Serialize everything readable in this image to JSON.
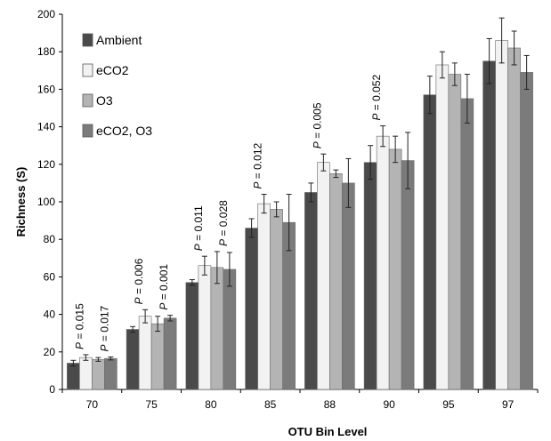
{
  "chart_data": {
    "type": "bar",
    "xlabel": "OTU Bin Level",
    "ylabel": "Richness (S)",
    "ylim": [
      0,
      200
    ],
    "yticks": [
      "0",
      "20",
      "40",
      "60",
      "80",
      "100",
      "120",
      "140",
      "160",
      "180",
      "200"
    ],
    "grid": false,
    "legend_position": "top-left",
    "categories": [
      "70",
      "75",
      "80",
      "85",
      "88",
      "90",
      "95",
      "97"
    ],
    "series": [
      {
        "name": "Ambient",
        "color": "#4a4a4a",
        "values": [
          14,
          32,
          57,
          86,
          105,
          121,
          157,
          175
        ],
        "errors": [
          1.5,
          1.5,
          1.5,
          5,
          5,
          9,
          10,
          12
        ]
      },
      {
        "name": "eCO2",
        "color": "#f2f2f2",
        "values": [
          17,
          39,
          66,
          99,
          121,
          135,
          173,
          186
        ],
        "errors": [
          1.5,
          3.5,
          5,
          5,
          4.5,
          5.5,
          7,
          12
        ]
      },
      {
        "name": "O3",
        "color": "#b4b4b4",
        "values": [
          16,
          35,
          65,
          96,
          115,
          128,
          168,
          182
        ],
        "errors": [
          1,
          4,
          8.5,
          4,
          2,
          7,
          6,
          9
        ]
      },
      {
        "name": "eCO2, O3",
        "color": "#7b7b7b",
        "values": [
          16.5,
          38,
          64,
          89,
          110,
          122,
          155,
          169
        ],
        "errors": [
          0.8,
          1.5,
          9,
          15,
          13,
          15,
          13,
          9
        ]
      }
    ],
    "annotations": [
      {
        "category": "70",
        "pair": [
          0,
          1
        ],
        "prefix": "P",
        "text": " = 0.015"
      },
      {
        "category": "70",
        "pair": [
          2,
          3
        ],
        "prefix": "P",
        "text": " = 0.017"
      },
      {
        "category": "75",
        "pair": [
          0,
          1
        ],
        "prefix": "P",
        "text": " = 0.006"
      },
      {
        "category": "75",
        "pair": [
          2,
          3
        ],
        "prefix": "P",
        "text": " = 0.001"
      },
      {
        "category": "80",
        "pair": [
          0,
          1
        ],
        "prefix": "P",
        "text": " = 0.011"
      },
      {
        "category": "80",
        "pair": [
          2,
          3
        ],
        "prefix": "P",
        "text": " = 0.028"
      },
      {
        "category": "85",
        "pair": [
          0,
          1
        ],
        "prefix": "P",
        "text": " = 0.012"
      },
      {
        "category": "88",
        "pair": [
          0,
          1
        ],
        "prefix": "P",
        "text": " = 0.005"
      },
      {
        "category": "90",
        "pair": [
          0,
          1
        ],
        "prefix": "P",
        "text": " = 0.052"
      }
    ]
  }
}
